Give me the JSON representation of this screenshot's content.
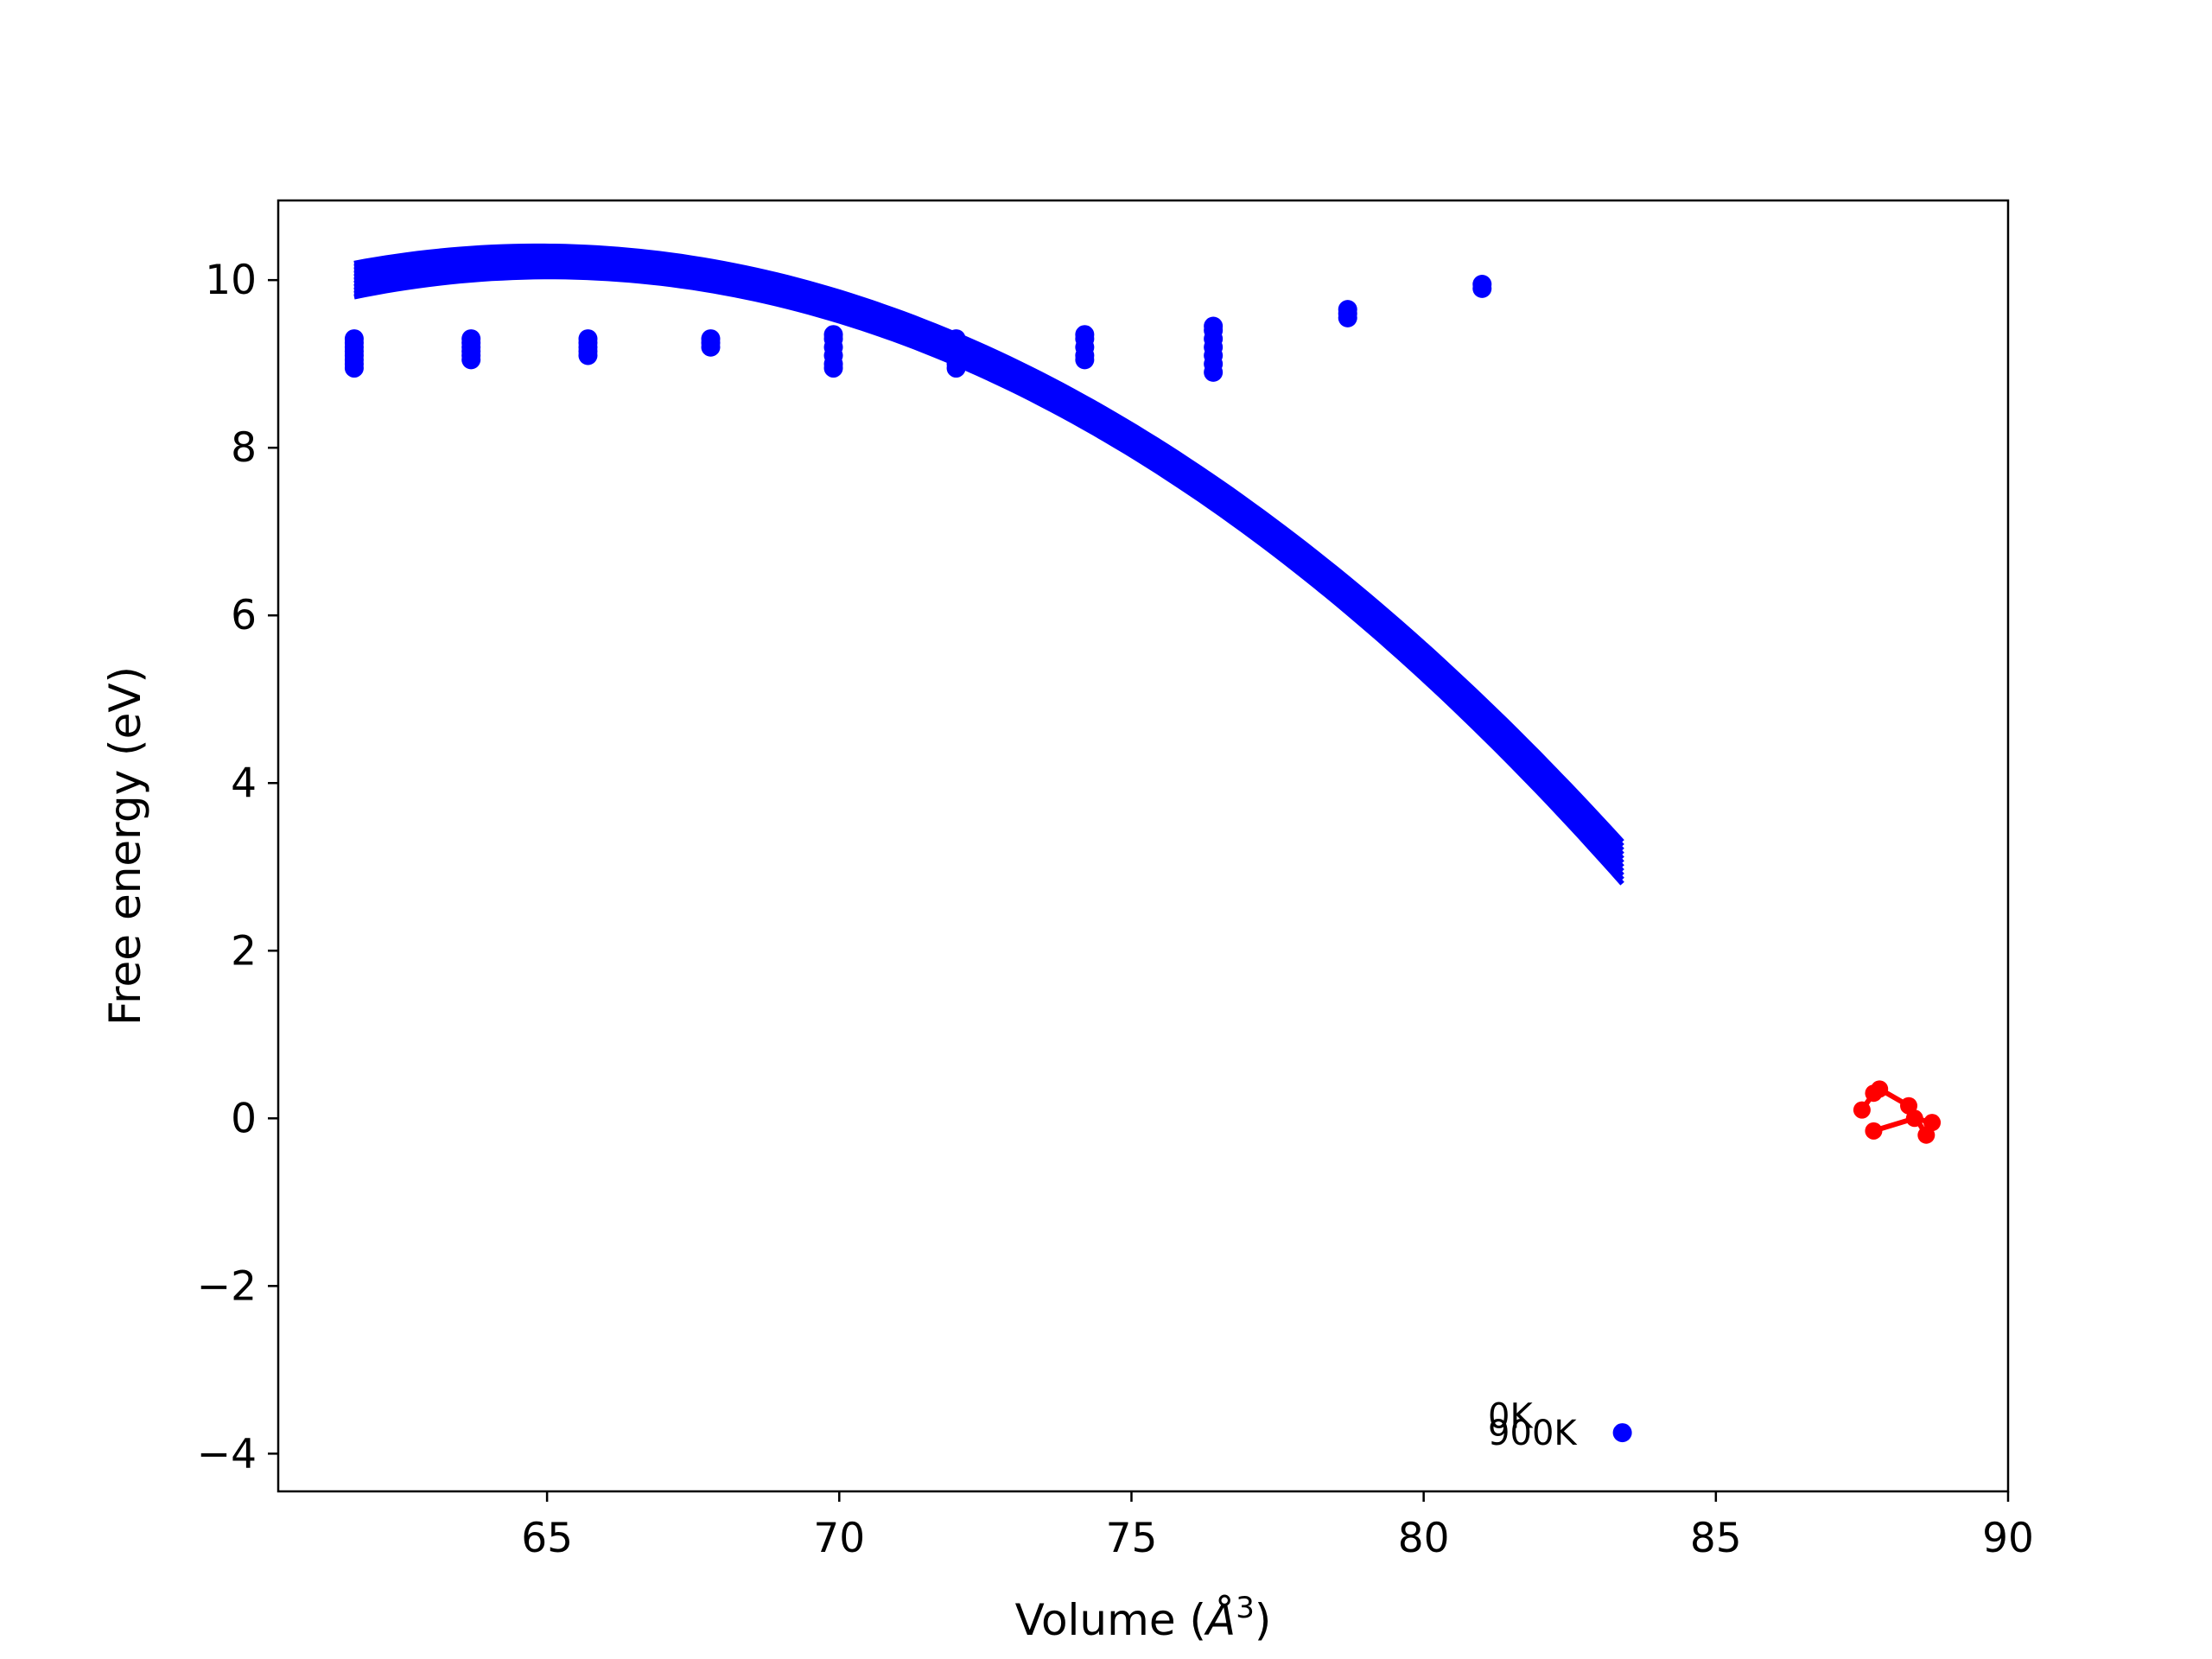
{
  "chart_data": {
    "type": "scatter",
    "xlabel": "Volume (Å³)",
    "xlabel_parts": {
      "prefix": "Volume (",
      "italic": "Å",
      "superscript": "3",
      "suffix": ")"
    },
    "ylabel": "Free energy (eV)",
    "xlim": [
      60.4,
      90.0
    ],
    "ylim": [
      -4.45,
      10.95
    ],
    "xticks": [
      65,
      70,
      75,
      80,
      85,
      90
    ],
    "yticks": [
      -4,
      -2,
      0,
      2,
      4,
      6,
      8,
      10
    ],
    "xtick_labels": [
      "65",
      "70",
      "75",
      "80",
      "85",
      "90"
    ],
    "ytick_labels": [
      "−4",
      "−2",
      "0",
      "2",
      "4",
      "6",
      "8",
      "10"
    ],
    "grid": false,
    "colors": {
      "points": "#0000ff",
      "curves": "#0000ff",
      "minimum_path": "#ff0000"
    },
    "fit_curves": {
      "x_start": 61.7,
      "x_end": 83.4,
      "top_curve": {
        "y_start": 10.2,
        "y_at_72": 9.35,
        "y_end": 3.3
      },
      "bottom_curve": {
        "y_start": 9.8,
        "y_at_72": 9.0,
        "y_end": 2.8
      }
    },
    "scatter_points": [
      {
        "x": 61.7,
        "y": [
          9.3,
          9.25,
          9.2,
          9.15,
          9.1,
          9.05,
          9.0,
          8.95
        ]
      },
      {
        "x": 63.7,
        "y": [
          9.3,
          9.25,
          9.2,
          9.15,
          9.1,
          9.05
        ]
      },
      {
        "x": 65.7,
        "y": [
          9.3,
          9.25,
          9.2,
          9.15,
          9.1
        ]
      },
      {
        "x": 67.8,
        "y": [
          9.3,
          9.25,
          9.2
        ]
      },
      {
        "x": 69.9,
        "y": [
          9.35,
          9.3,
          9.2,
          9.1,
          9.0,
          8.95
        ]
      },
      {
        "x": 72.0,
        "y": [
          9.3,
          9.2,
          9.1,
          9.0,
          8.95
        ]
      },
      {
        "x": 74.2,
        "y": [
          9.35,
          9.3,
          9.2,
          9.1,
          9.05
        ]
      },
      {
        "x": 76.4,
        "y": [
          9.45,
          9.4,
          9.3,
          9.2,
          9.1,
          9.0,
          8.9
        ]
      },
      {
        "x": 78.7,
        "y": [
          9.65,
          9.6,
          9.55
        ]
      },
      {
        "x": 81.0,
        "y": [
          9.95,
          9.9
        ]
      },
      {
        "x": 83.4,
        "y": [
          -3.75
        ]
      }
    ],
    "minimum_path": {
      "x": [
        87.5,
        87.7,
        87.8,
        88.3,
        88.6,
        88.7,
        88.4,
        87.7
      ],
      "y": [
        0.1,
        0.3,
        0.35,
        0.15,
        -0.2,
        -0.05,
        0.0,
        -0.15
      ]
    },
    "annotations": [
      {
        "text": "0K",
        "x": 81.1,
        "y": -3.55
      },
      {
        "text": "900K",
        "x": 81.1,
        "y": -3.75
      }
    ]
  }
}
